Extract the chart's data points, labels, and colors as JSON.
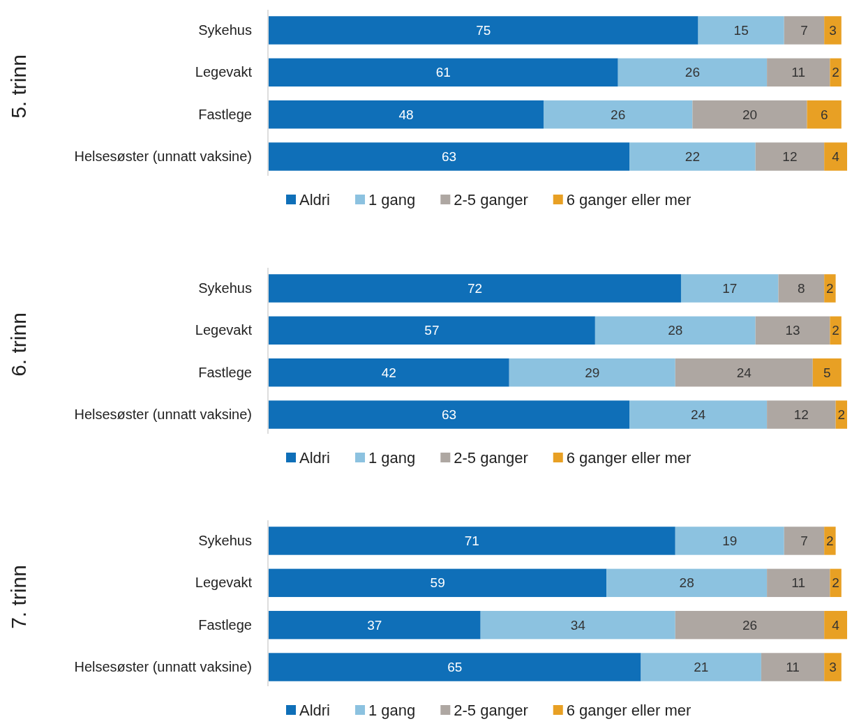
{
  "chart_data": [
    {
      "type": "bar",
      "orientation": "horizontal",
      "stacked": true,
      "data_labels": true,
      "legend": "bottom",
      "ylabel": "5. trinn",
      "categories": [
        "Sykehus",
        "Legevakt",
        "Fastlege",
        "Helsesøster (unnatt vaksine)"
      ],
      "series": [
        {
          "name": "Aldri",
          "color": "#0f6fb8",
          "values": [
            75,
            61,
            48,
            63
          ]
        },
        {
          "name": "1 gang",
          "color": "#8cc2e0",
          "values": [
            15,
            26,
            26,
            22
          ]
        },
        {
          "name": "2-5 ganger",
          "color": "#aea7a2",
          "values": [
            7,
            11,
            20,
            12
          ]
        },
        {
          "name": "6 ganger eller mer",
          "color": "#e8a024",
          "values": [
            3,
            2,
            6,
            4
          ]
        }
      ]
    },
    {
      "type": "bar",
      "orientation": "horizontal",
      "stacked": true,
      "data_labels": true,
      "legend": "bottom",
      "ylabel": "6. trinn",
      "categories": [
        "Sykehus",
        "Legevakt",
        "Fastlege",
        "Helsesøster (unnatt vaksine)"
      ],
      "series": [
        {
          "name": "Aldri",
          "color": "#0f6fb8",
          "values": [
            72,
            57,
            42,
            63
          ]
        },
        {
          "name": "1 gang",
          "color": "#8cc2e0",
          "values": [
            17,
            28,
            29,
            24
          ]
        },
        {
          "name": "2-5 ganger",
          "color": "#aea7a2",
          "values": [
            8,
            13,
            24,
            12
          ]
        },
        {
          "name": "6 ganger eller mer",
          "color": "#e8a024",
          "values": [
            2,
            2,
            5,
            2
          ]
        }
      ]
    },
    {
      "type": "bar",
      "orientation": "horizontal",
      "stacked": true,
      "data_labels": true,
      "legend": "bottom",
      "ylabel": "7. trinn",
      "categories": [
        "Sykehus",
        "Legevakt",
        "Fastlege",
        "Helsesøster (unnatt vaksine)"
      ],
      "series": [
        {
          "name": "Aldri",
          "color": "#0f6fb8",
          "values": [
            71,
            59,
            37,
            65
          ]
        },
        {
          "name": "1 gang",
          "color": "#8cc2e0",
          "values": [
            19,
            28,
            34,
            21
          ]
        },
        {
          "name": "2-5 ganger",
          "color": "#aea7a2",
          "values": [
            7,
            11,
            26,
            11
          ]
        },
        {
          "name": "6 ganger eller mer",
          "color": "#e8a024",
          "values": [
            2,
            2,
            4,
            3
          ]
        }
      ]
    }
  ]
}
